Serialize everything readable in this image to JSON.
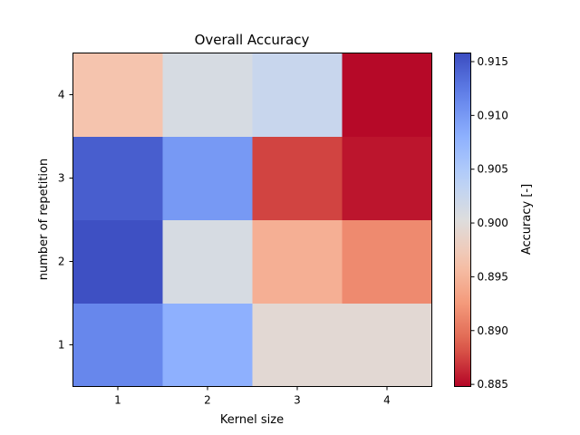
{
  "chart_data": {
    "type": "heatmap",
    "title": "Overall Accuracy",
    "xlabel": "Kernel size",
    "ylabel": "number of repetition",
    "x_categories": [
      "1",
      "2",
      "3",
      "4"
    ],
    "y_categories": [
      "1",
      "2",
      "3",
      "4"
    ],
    "values": [
      [
        0.9115,
        0.908,
        0.8995,
        0.8995
      ],
      [
        0.9155,
        0.901,
        0.8945,
        0.8915
      ],
      [
        0.9145,
        0.91,
        0.8875,
        0.8855
      ],
      [
        0.8965,
        0.901,
        0.9025,
        0.885
      ]
    ],
    "colormap": "coolwarm",
    "colorbar": {
      "label": "Accuracy [-]",
      "range": [
        0.8848,
        0.9158
      ],
      "ticks": [
        "0.885",
        "0.890",
        "0.895",
        "0.900",
        "0.905",
        "0.910",
        "0.915"
      ]
    }
  }
}
